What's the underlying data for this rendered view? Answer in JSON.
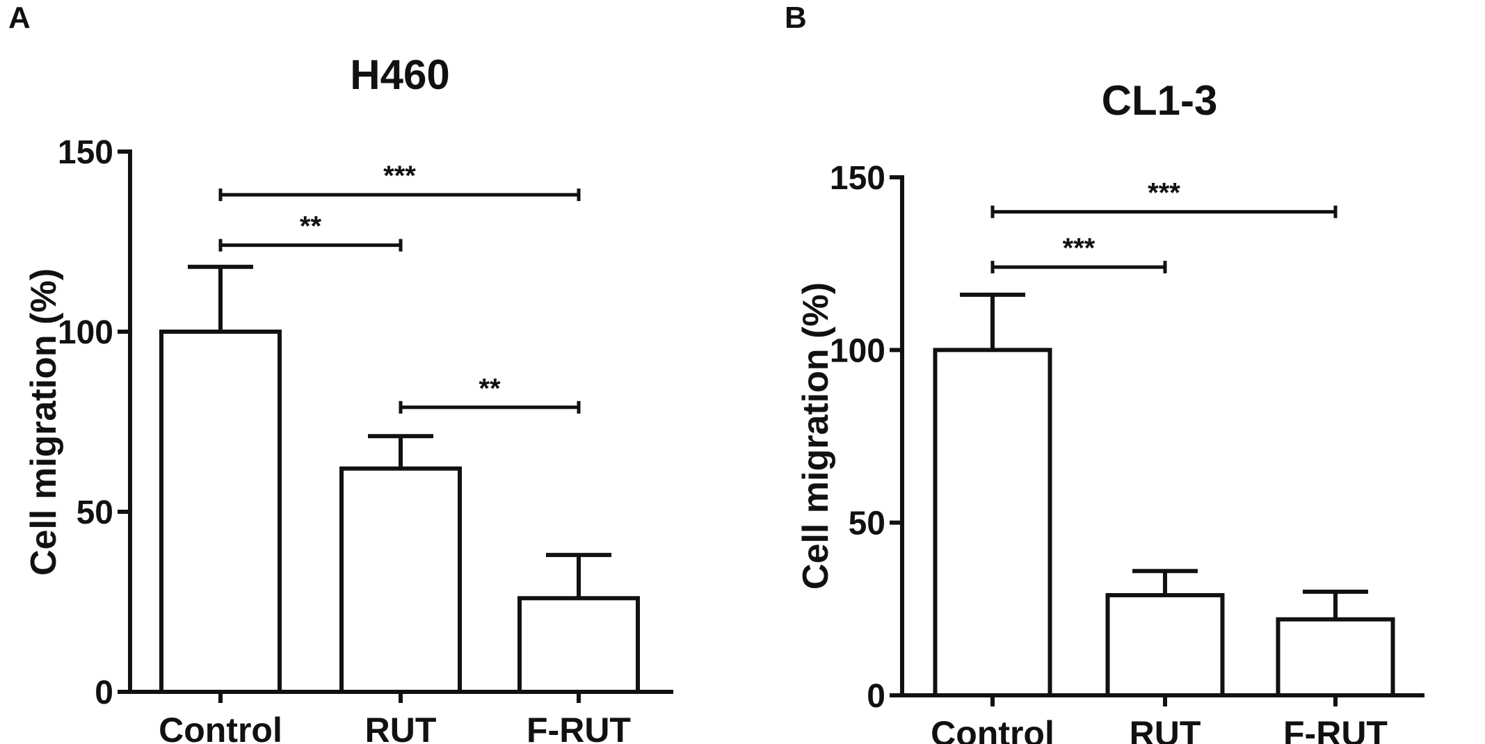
{
  "chart_data": [
    {
      "panel": "A",
      "type": "bar",
      "title": "H460",
      "ylabel": "Cell migration (%)",
      "xlabel": "",
      "categories": [
        "Control",
        "RUT",
        "F-RUT"
      ],
      "values": [
        100,
        62,
        26
      ],
      "errors": [
        18,
        9,
        12
      ],
      "ylim": [
        0,
        150
      ],
      "yticks": [
        0,
        50,
        100,
        150
      ],
      "significance": [
        {
          "from": 0,
          "to": 1,
          "label": "**",
          "y": 124
        },
        {
          "from": 0,
          "to": 2,
          "label": "***",
          "y": 138
        },
        {
          "from": 1,
          "to": 2,
          "label": "**",
          "y": 79
        }
      ]
    },
    {
      "panel": "B",
      "type": "bar",
      "title": "CL1-3",
      "ylabel": "Cell migration (%)",
      "xlabel": "",
      "categories": [
        "Control",
        "RUT",
        "F-RUT"
      ],
      "values": [
        100,
        29,
        22
      ],
      "errors": [
        16,
        7,
        8
      ],
      "ylim": [
        0,
        150
      ],
      "yticks": [
        0,
        50,
        100,
        150
      ],
      "significance": [
        {
          "from": 0,
          "to": 1,
          "label": "***",
          "y": 124
        },
        {
          "from": 0,
          "to": 2,
          "label": "***",
          "y": 140
        }
      ]
    }
  ]
}
